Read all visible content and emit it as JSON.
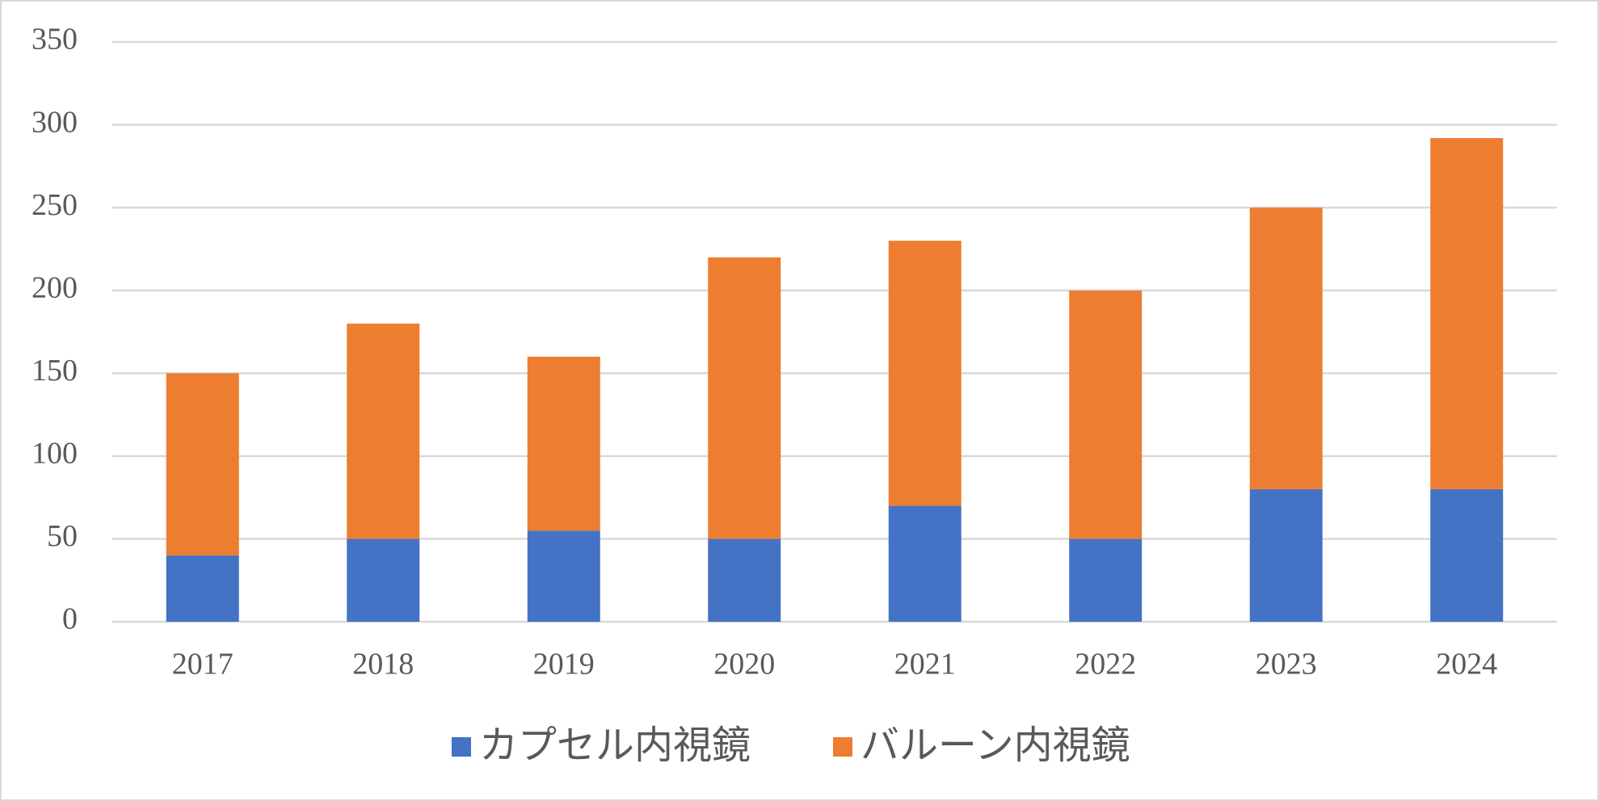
{
  "chart_data": {
    "type": "stacked_bar",
    "categories": [
      "2017",
      "2018",
      "2019",
      "2020",
      "2021",
      "2022",
      "2023",
      "2024"
    ],
    "series": [
      {
        "name": "カプセル内視鏡",
        "color": "#4472c4",
        "values": [
          40,
          50,
          55,
          50,
          70,
          50,
          80,
          80
        ]
      },
      {
        "name": "バルーン内視鏡",
        "color": "#ed7d31",
        "values": [
          110,
          130,
          105,
          170,
          160,
          150,
          170,
          212
        ]
      }
    ],
    "ylim": [
      0,
      350
    ],
    "yticks": [
      0,
      50,
      100,
      150,
      200,
      250,
      300,
      350
    ],
    "grid": true,
    "legend": "bottom"
  }
}
